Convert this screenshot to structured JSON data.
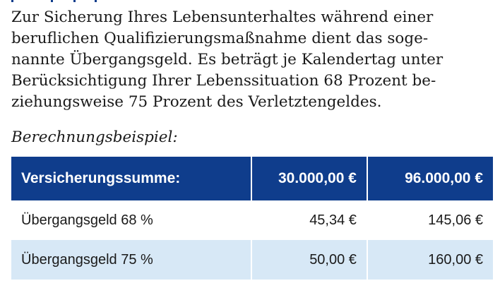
{
  "intro_lines": [
    "Zur Sicherung Ihres Lebensunterhaltes während einer",
    "beruflichen Qualifizierungsmaßnahme dient das soge-",
    "nannte Übergangsgeld. Es beträgt je Kalendertag unter",
    "Berücksichtigung Ihrer Lebenssituation 68 Prozent be-",
    "ziehungsweise 75 Prozent des Verletztengeldes."
  ],
  "caption": "Berechnungsbeispiel:",
  "table": {
    "header": {
      "label": "Versicherungssumme:",
      "col1": "30.000,00 €",
      "col2": "96.000,00 €"
    },
    "rows": [
      {
        "label": "Übergangsgeld 68 %",
        "col1": "45,34 €",
        "col2": "145,06 €"
      },
      {
        "label": "Übergangsgeld 75 %",
        "col1": "50,00 €",
        "col2": "160,00 €"
      }
    ]
  },
  "colors": {
    "header_bg": "#0f3d8c",
    "alt_row_bg": "#d7e8f6",
    "text": "#1a1a1a"
  }
}
